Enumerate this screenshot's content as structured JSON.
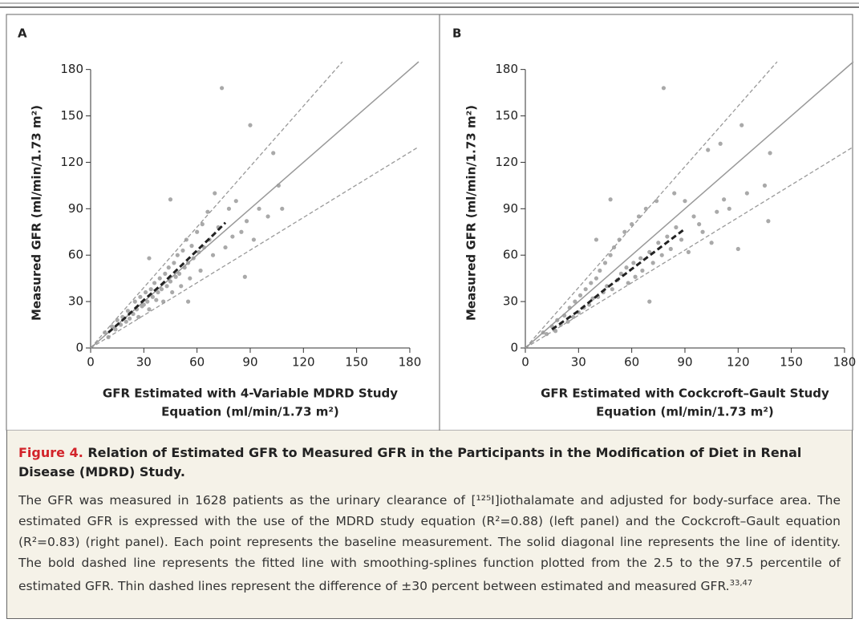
{
  "chart_data": [
    {
      "type": "scatter",
      "panel_label": "A",
      "ylabel": "Measured GFR (ml/min/1.73 m²)",
      "xlabel_lines": [
        "GFR Estimated with 4-Variable MDRD Study",
        "Equation (ml/min/1.73 m²)"
      ],
      "xlim": [
        0,
        185
      ],
      "ylim": [
        0,
        185
      ],
      "xticks": [
        0,
        30,
        60,
        90,
        120,
        150,
        180
      ],
      "yticks": [
        0,
        30,
        60,
        90,
        120,
        150,
        180
      ],
      "color": "#a9a9a9",
      "x": [
        8,
        10,
        12,
        14,
        15,
        17,
        18,
        20,
        21,
        22,
        24,
        25,
        26,
        27,
        28,
        29,
        30,
        31,
        32,
        33,
        34,
        35,
        36,
        37,
        38,
        39,
        40,
        41,
        42,
        43,
        44,
        45,
        46,
        47,
        48,
        49,
        50,
        51,
        52,
        53,
        54,
        55,
        56,
        57,
        58,
        60,
        61,
        62,
        63,
        64,
        66,
        67,
        69,
        70,
        72,
        74,
        76,
        78,
        80,
        82,
        85,
        88,
        90,
        92,
        95,
        100,
        103,
        106,
        108,
        45,
        33,
        55,
        87
      ],
      "y": [
        10,
        7,
        14,
        12,
        18,
        15,
        20,
        17,
        24,
        19,
        22,
        30,
        25,
        20,
        33,
        27,
        28,
        36,
        30,
        25,
        38,
        33,
        42,
        31,
        36,
        45,
        38,
        30,
        48,
        40,
        52,
        43,
        36,
        55,
        46,
        60,
        48,
        40,
        63,
        52,
        70,
        55,
        45,
        66,
        58,
        75,
        62,
        50,
        80,
        65,
        88,
        70,
        60,
        100,
        78,
        168,
        65,
        90,
        72,
        95,
        75,
        82,
        144,
        70,
        90,
        85,
        126,
        105,
        90,
        96,
        58,
        30,
        46
      ],
      "identity_line": {
        "x": [
          0,
          185
        ],
        "y": [
          0,
          185
        ]
      },
      "upper_line": {
        "x": [
          0,
          142
        ],
        "y": [
          0,
          185
        ]
      },
      "lower_line": {
        "x": [
          0,
          185
        ],
        "y": [
          0,
          130
        ]
      },
      "fitted_line": {
        "x": [
          10,
          20,
          30,
          40,
          50,
          60,
          70,
          76
        ],
        "y": [
          10,
          20,
          31,
          41,
          52,
          63,
          74,
          81
        ]
      }
    },
    {
      "type": "scatter",
      "panel_label": "B",
      "ylabel": "Measured GFR (ml/min/1.73 m²)",
      "xlabel_lines": [
        "GFR Estimated with Cockcroft–Gault Study",
        "Equation (ml/min/1.73 m²)"
      ],
      "xlim": [
        0,
        185
      ],
      "ylim": [
        0,
        185
      ],
      "xticks": [
        0,
        30,
        60,
        90,
        120,
        150,
        180
      ],
      "yticks": [
        0,
        30,
        60,
        90,
        120,
        150,
        180
      ],
      "color": "#a9a9a9",
      "x": [
        10,
        12,
        15,
        17,
        18,
        20,
        22,
        24,
        25,
        27,
        28,
        30,
        31,
        33,
        34,
        36,
        37,
        38,
        40,
        41,
        42,
        44,
        45,
        46,
        48,
        49,
        50,
        52,
        53,
        54,
        56,
        57,
        58,
        60,
        61,
        62,
        64,
        65,
        66,
        68,
        70,
        72,
        74,
        75,
        77,
        78,
        80,
        82,
        84,
        85,
        88,
        90,
        92,
        95,
        98,
        100,
        103,
        105,
        108,
        110,
        112,
        115,
        120,
        122,
        125,
        135,
        137,
        138,
        48,
        70,
        40
      ],
      "y": [
        10,
        9,
        14,
        11,
        18,
        15,
        21,
        17,
        26,
        20,
        30,
        23,
        34,
        26,
        38,
        28,
        42,
        32,
        45,
        33,
        50,
        36,
        55,
        40,
        60,
        38,
        65,
        44,
        70,
        48,
        75,
        52,
        42,
        80,
        55,
        46,
        85,
        58,
        50,
        90,
        62,
        55,
        95,
        68,
        60,
        168,
        72,
        64,
        100,
        78,
        70,
        95,
        62,
        85,
        80,
        75,
        128,
        68,
        88,
        132,
        96,
        90,
        64,
        144,
        100,
        105,
        82,
        126,
        96,
        30,
        70
      ],
      "identity_line": {
        "x": [
          0,
          185
        ],
        "y": [
          0,
          185
        ]
      },
      "upper_line": {
        "x": [
          0,
          142
        ],
        "y": [
          0,
          185
        ]
      },
      "lower_line": {
        "x": [
          0,
          185
        ],
        "y": [
          0,
          130
        ]
      },
      "fitted_line": {
        "x": [
          15,
          30,
          45,
          60,
          75,
          90
        ],
        "y": [
          12,
          24,
          38,
          51,
          64,
          77
        ]
      }
    }
  ],
  "caption": {
    "figure_label": "Figure 4.",
    "title": "Relation of Estimated GFR to Measured GFR in the Participants in the Modification of Diet in Renal Disease (MDRD) Study.",
    "body": "The GFR was measured in 1628 patients as the urinary clearance of [¹²⁵I]iothalamate and adjusted for body-surface area. The estimated GFR is expressed with the use of the MDRD study equation (R²=0.88) (left panel) and the Cockcroft–Gault equation (R²=0.83) (right panel). Each point represents the baseline measurement. The solid diagonal line represents the line of identity. The bold dashed line represents the fitted line with smoothing-splines function plotted from the 2.5 to the 97.5 percentile of estimated GFR. Thin dashed lines represent the difference of ±30 percent between estimated and measured GFR.",
    "refs": "33,47"
  }
}
